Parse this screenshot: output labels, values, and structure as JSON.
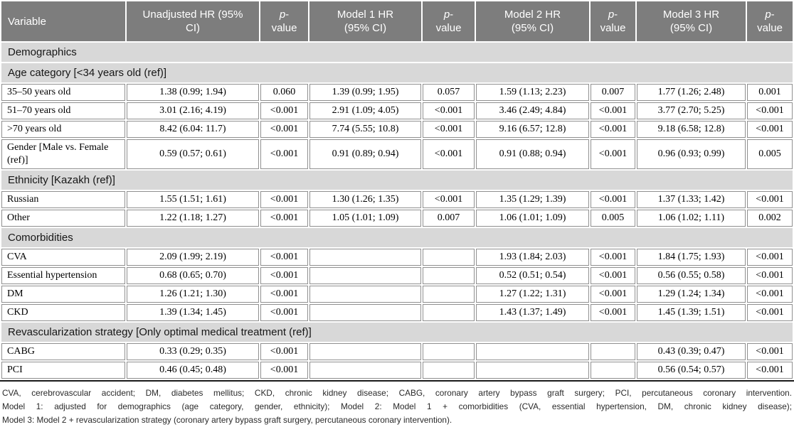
{
  "colors": {
    "header_bg": "#7d7d7d",
    "section_bg": "#d8d8d8",
    "cell_border": "#8f8f8f",
    "rule": "#1a1a1a",
    "header_text": "#ffffff"
  },
  "table": {
    "columns": [
      {
        "line1": "Variable",
        "line2": ""
      },
      {
        "line1": "Unadjusted HR (95%",
        "line2": "CI)"
      },
      {
        "line1": "p-",
        "line2": "value"
      },
      {
        "line1": "Model 1 HR",
        "line2": "(95% CI)"
      },
      {
        "line1": "p-",
        "line2": "value"
      },
      {
        "line1": "Model 2 HR",
        "line2": "(95% CI)"
      },
      {
        "line1": "p-",
        "line2": "value"
      },
      {
        "line1": "Model 3 HR",
        "line2": "(95% CI)"
      },
      {
        "line1": "p-",
        "line2": "value"
      }
    ],
    "rows": [
      {
        "type": "section",
        "label": "Demographics"
      },
      {
        "type": "section",
        "label": "Age category [<34 years old (ref)]"
      },
      {
        "type": "data",
        "cells": [
          "35–50 years old",
          "1.38 (0.99; 1.94)",
          "0.060",
          "1.39 (0.99; 1.95)",
          "0.057",
          "1.59 (1.13; 2.23)",
          "0.007",
          "1.77 (1.26; 2.48)",
          "0.001"
        ]
      },
      {
        "type": "data",
        "cells": [
          "51–70 years old",
          "3.01 (2.16; 4.19)",
          "<0.001",
          "2.91 (1.09; 4.05)",
          "<0.001",
          "3.46 (2.49; 4.84)",
          "<0.001",
          "3.77 (2.70; 5.25)",
          "<0.001"
        ]
      },
      {
        "type": "data",
        "cells": [
          ">70 years old",
          "8.42 (6.04: 11.7)",
          "<0.001",
          "7.74 (5.55; 10.8)",
          "<0.001",
          "9.16 (6.57; 12.8)",
          "<0.001",
          "9.18 (6.58; 12.8)",
          "<0.001"
        ]
      },
      {
        "type": "data",
        "cells": [
          "Gender [Male vs. Female (ref)]",
          "0.59 (0.57; 0.61)",
          "<0.001",
          "0.91 (0.89; 0.94)",
          "<0.001",
          "0.91 (0.88; 0.94)",
          "<0.001",
          "0.96 (0.93; 0.99)",
          "0.005"
        ]
      },
      {
        "type": "section",
        "label": "Ethnicity [Kazakh (ref)]"
      },
      {
        "type": "data",
        "cells": [
          "Russian",
          "1.55 (1.51; 1.61)",
          "<0.001",
          "1.30 (1.26; 1.35)",
          "<0.001",
          "1.35 (1.29; 1.39)",
          "<0.001",
          "1.37 (1.33; 1.42)",
          "<0.001"
        ]
      },
      {
        "type": "data",
        "cells": [
          "Other",
          "1.22 (1.18; 1.27)",
          "<0.001",
          "1.05 (1.01; 1.09)",
          "0.007",
          "1.06 (1.01; 1.09)",
          "0.005",
          "1.06 (1.02; 1.11)",
          "0.002"
        ]
      },
      {
        "type": "section",
        "label": "Comorbidities"
      },
      {
        "type": "data",
        "cells": [
          "CVA",
          "2.09 (1.99; 2.19)",
          "<0.001",
          "",
          "",
          "1.93 (1.84; 2.03)",
          "<0.001",
          "1.84 (1.75; 1.93)",
          "<0.001"
        ]
      },
      {
        "type": "data",
        "cells": [
          "Essential hypertension",
          "0.68 (0.65; 0.70)",
          "<0.001",
          "",
          "",
          "0.52 (0.51; 0.54)",
          "<0.001",
          "0.56 (0.55; 0.58)",
          "<0.001"
        ]
      },
      {
        "type": "data",
        "cells": [
          "DM",
          "1.26 (1.21; 1.30)",
          "<0.001",
          "",
          "",
          "1.27 (1.22; 1.31)",
          "<0.001",
          "1.29 (1.24; 1.34)",
          "<0.001"
        ]
      },
      {
        "type": "data",
        "cells": [
          "CKD",
          "1.39 (1.34; 1.45)",
          "<0.001",
          "",
          "",
          "1.43 (1.37; 1.49)",
          "<0.001",
          "1.45 (1.39; 1.51)",
          "<0.001"
        ]
      },
      {
        "type": "section",
        "label": "Revascularization strategy [Only optimal medical treatment (ref)]"
      },
      {
        "type": "data",
        "cells": [
          "CABG",
          "0.33 (0.29; 0.35)",
          "<0.001",
          "",
          "",
          "",
          "",
          "0.43 (0.39; 0.47)",
          "<0.001"
        ]
      },
      {
        "type": "data",
        "cells": [
          "PCI",
          "0.46 (0.45; 0.48)",
          "<0.001",
          "",
          "",
          "",
          "",
          "0.56 (0.54; 0.57)",
          "<0.001"
        ]
      }
    ]
  },
  "footnotes": {
    "lines": [
      "CVA, cerebrovascular accident; DM, diabetes mellitus; CKD, chronic kidney disease; CABG, coronary artery bypass graft surgery; PCI, percutaneous coronary intervention.",
      "Model 1: adjusted for demographics (age category, gender, ethnicity); Model 2: Model 1 + comorbidities (CVA, essential hypertension, DM, chronic kidney disease);",
      "Model 3: Model 2 + revascularization strategy (coronary artery bypass graft surgery, percutaneous coronary intervention)."
    ]
  }
}
